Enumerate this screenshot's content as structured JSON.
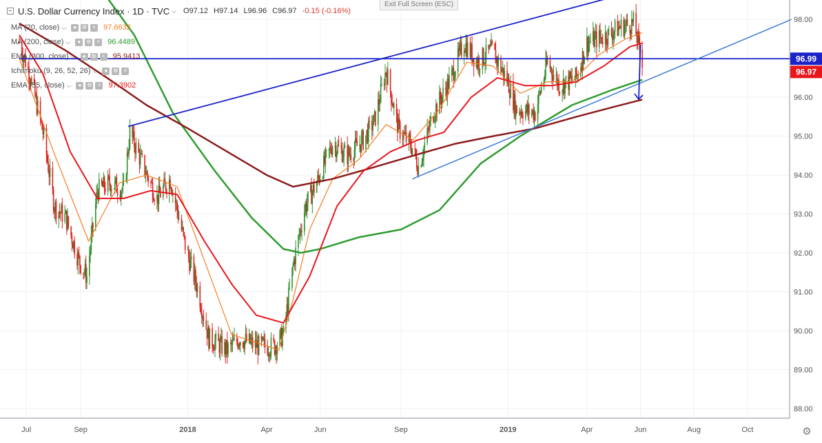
{
  "header": {
    "title": "U.S. Dollar Currency Index · 1D · TVC",
    "ohlc": {
      "open": "O97.12",
      "high": "H97.14",
      "low": "L96.96",
      "close": "C96.97",
      "change": "-0.15 (-0.16%)"
    }
  },
  "exit_fullscreen": "Exit Full Screen (ESC)",
  "indicators": [
    {
      "name": "MA (20, close)",
      "value": "97.6632",
      "color": "#f57c1f"
    },
    {
      "name": "MA (200, close)",
      "value": "96.4489",
      "color": "#2e9b2e"
    },
    {
      "name": "EMA (300, close)",
      "value": "95.9413",
      "color": "#8b1a1a"
    },
    {
      "name": "Ichimoku (9, 26, 52, 26)",
      "value": "",
      "color": "#3a6fd8"
    },
    {
      "name": "EMA (55, close)",
      "value": "97.3902",
      "color": "#e8151b"
    }
  ],
  "chart_data": {
    "type": "line",
    "title": "U.S. Dollar Currency Index, 1D, TVC",
    "x_ticks": [
      "Jul",
      "Sep",
      "2018",
      "Apr",
      "Jun",
      "Sep",
      "2019",
      "Apr",
      "Jun",
      "Aug",
      "Oct"
    ],
    "y_ticks": [
      "98.00",
      "97.00",
      "96.00",
      "95.00",
      "94.00",
      "93.00",
      "92.00",
      "91.00",
      "90.00",
      "89.00",
      "88.00"
    ],
    "ylim": [
      87.75,
      98.5
    ],
    "x_range": [
      "2017-06",
      "2019-11"
    ],
    "price_labels": [
      {
        "value": "96.99",
        "color": "#1a22c8"
      },
      {
        "value": "96.97",
        "color": "#e8151b"
      }
    ],
    "price": {
      "x": [
        "2017-06-23",
        "2017-07-05",
        "2017-07-20",
        "2017-08-02",
        "2017-08-15",
        "2017-08-30",
        "2017-09-08",
        "2017-09-20",
        "2017-10-05",
        "2017-10-20",
        "2017-10-27",
        "2017-11-10",
        "2017-11-27",
        "2017-12-12",
        "2017-12-29",
        "2018-01-12",
        "2018-01-25",
        "2018-02-15",
        "2018-03-01",
        "2018-03-22",
        "2018-04-10",
        "2018-04-20",
        "2018-05-02",
        "2018-05-15",
        "2018-05-28",
        "2018-06-15",
        "2018-07-02",
        "2018-07-20",
        "2018-08-02",
        "2018-08-15",
        "2018-08-29",
        "2018-09-14",
        "2018-09-21",
        "2018-10-08",
        "2018-10-26",
        "2018-11-12",
        "2018-11-27",
        "2018-12-14",
        "2019-01-01",
        "2019-01-10",
        "2019-02-01",
        "2019-02-15",
        "2019-03-01",
        "2019-03-20",
        "2019-04-01",
        "2019-04-25",
        "2019-05-08",
        "2019-05-24",
        "2019-06-03"
      ],
      "values": [
        97.4,
        96.6,
        95.1,
        93.2,
        92.9,
        91.8,
        91.4,
        93.6,
        93.8,
        93.6,
        95.1,
        94.3,
        93.4,
        93.9,
        92.2,
        91.1,
        89.8,
        89.5,
        89.8,
        89.6,
        89.6,
        89.9,
        91.8,
        93.2,
        93.8,
        94.8,
        94.5,
        94.9,
        95.4,
        96.7,
        95.2,
        94.7,
        94.2,
        95.6,
        96.4,
        97.4,
        96.9,
        97.2,
        96.4,
        95.7,
        95.6,
        96.9,
        96.3,
        96.5,
        97.4,
        97.6,
        97.8,
        97.9,
        96.97
      ]
    },
    "series": [
      {
        "name": "MA (20, close)",
        "color": "#f57c1f",
        "x": [
          "2017-06-23",
          "2017-08-01",
          "2017-09-10",
          "2017-10-15",
          "2017-11-15",
          "2017-12-20",
          "2018-01-20",
          "2018-02-20",
          "2018-03-20",
          "2018-04-15",
          "2018-05-01",
          "2018-05-20",
          "2018-06-15",
          "2018-07-15",
          "2018-08-15",
          "2018-09-15",
          "2018-10-15",
          "2018-11-15",
          "2018-12-15",
          "2019-01-15",
          "2019-02-15",
          "2019-03-15",
          "2019-04-15",
          "2019-05-15",
          "2019-06-03"
        ],
        "values": [
          97.0,
          94.6,
          92.3,
          93.8,
          94.0,
          93.7,
          91.8,
          89.9,
          89.7,
          89.5,
          90.8,
          92.6,
          93.9,
          94.4,
          95.3,
          94.9,
          95.7,
          96.9,
          96.8,
          96.1,
          96.4,
          96.4,
          97.1,
          97.5,
          97.66
        ]
      },
      {
        "name": "MA (200, close)",
        "color": "#2e9b2e",
        "x": [
          "2017-09-01",
          "2017-11-01",
          "2017-12-15",
          "2018-02-01",
          "2018-03-15",
          "2018-04-20",
          "2018-05-10",
          "2018-06-01",
          "2018-07-15",
          "2018-09-01",
          "2018-10-15",
          "2018-12-01",
          "2019-01-15",
          "2019-03-15",
          "2019-05-01",
          "2019-06-03"
        ],
        "values": [
          99.5,
          97.6,
          95.6,
          94.1,
          92.9,
          92.1,
          92.0,
          92.1,
          92.4,
          92.6,
          93.1,
          94.3,
          95.0,
          95.8,
          96.2,
          96.45
        ]
      },
      {
        "name": "EMA (300, close)",
        "color": "#8b1a1a",
        "x": [
          "2017-06-23",
          "2017-08-15",
          "2017-10-01",
          "2017-11-15",
          "2018-01-01",
          "2018-02-15",
          "2018-04-01",
          "2018-05-01",
          "2018-06-15",
          "2018-08-01",
          "2018-09-15",
          "2018-11-01",
          "2018-12-15",
          "2019-02-01",
          "2019-03-20",
          "2019-05-01",
          "2019-06-03"
        ],
        "values": [
          97.9,
          97.2,
          96.5,
          95.8,
          95.2,
          94.6,
          94.0,
          93.7,
          93.9,
          94.2,
          94.5,
          94.8,
          95.0,
          95.2,
          95.5,
          95.75,
          95.94
        ]
      },
      {
        "name": "EMA (55, close)",
        "color": "#e8151b",
        "x": [
          "2017-06-23",
          "2017-07-20",
          "2017-08-20",
          "2017-09-20",
          "2017-10-20",
          "2017-11-20",
          "2017-12-20",
          "2018-01-20",
          "2018-02-20",
          "2018-03-20",
          "2018-04-20",
          "2018-05-20",
          "2018-06-20",
          "2018-07-20",
          "2018-08-20",
          "2018-09-20",
          "2018-10-20",
          "2018-11-20",
          "2018-12-20",
          "2019-01-20",
          "2019-02-20",
          "2019-03-20",
          "2019-04-20",
          "2019-05-20",
          "2019-06-03"
        ],
        "values": [
          97.6,
          96.6,
          94.6,
          93.4,
          93.4,
          93.6,
          93.5,
          92.3,
          91.2,
          90.4,
          90.2,
          91.4,
          93.2,
          94.1,
          94.6,
          94.9,
          95.1,
          96.0,
          96.5,
          96.3,
          96.3,
          96.4,
          96.8,
          97.3,
          97.39
        ]
      }
    ],
    "trendlines": [
      {
        "color": "#1a22c8",
        "from": {
          "x": "2017-10-25",
          "y": 95.25
        },
        "to": {
          "x": "2019-06-15",
          "y": 98.85
        }
      },
      {
        "color": "#1a22c8",
        "from": {
          "x": "2017-06-23",
          "y": 96.99
        },
        "to": {
          "x": "2019-11-20",
          "y": 96.99
        }
      },
      {
        "color": "#3a7bd5",
        "from": {
          "x": "2018-09-14",
          "y": 93.9
        },
        "to": {
          "x": "2019-11-20",
          "y": 98.0
        }
      },
      {
        "color": "#1a22c8",
        "from": {
          "x": "2019-06-01",
          "y": 97.35
        },
        "to": {
          "x": "2019-05-30",
          "y": 95.95
        }
      }
    ]
  }
}
